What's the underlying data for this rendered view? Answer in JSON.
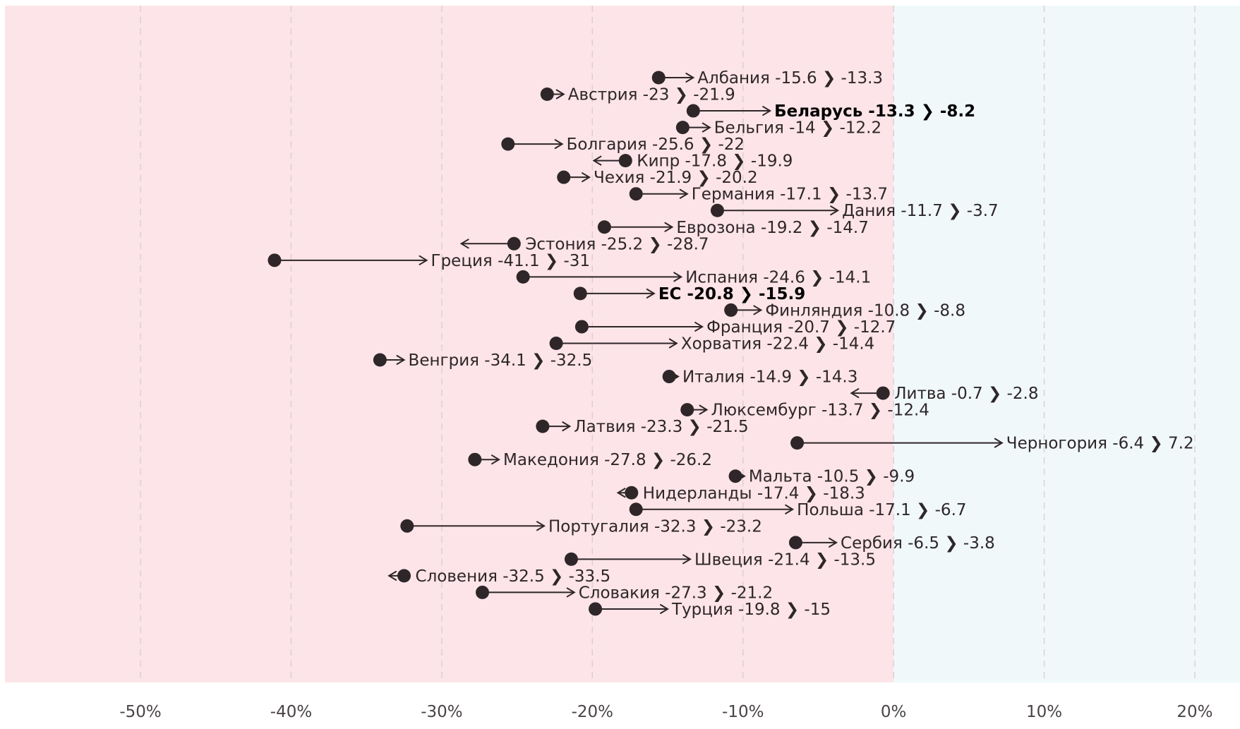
{
  "chart_data": {
    "type": "dumbbell-arrow",
    "title": "",
    "xlabel": "",
    "ylabel": "",
    "xlim": [
      -59,
      23
    ],
    "x_ticks": [
      -50,
      -40,
      -30,
      -20,
      -10,
      0,
      10,
      20
    ],
    "x_tick_labels": [
      "-50%",
      "-40%",
      "-30%",
      "-20%",
      "-10%",
      "0%",
      "10%",
      "20%"
    ],
    "grid": "vertical-dashed",
    "background_bands": [
      {
        "from": -59,
        "to": 0,
        "color": "#fce4e8"
      },
      {
        "from": 0,
        "to": 23,
        "color": "#f0f8fa"
      }
    ],
    "colors": {
      "marker": "#2e2629",
      "arrow": "#2e2629",
      "grid": "#d9cfd2",
      "label": "#2e2629"
    },
    "separator": "❯",
    "rows": [
      {
        "name": "Албания",
        "start": -15.6,
        "end": -13.3,
        "highlight": false
      },
      {
        "name": "Австрия",
        "start": -23,
        "end": -21.9,
        "highlight": false
      },
      {
        "name": "Беларусь",
        "start": -13.3,
        "end": -8.2,
        "highlight": true
      },
      {
        "name": "Бельгия",
        "start": -14,
        "end": -12.2,
        "highlight": false
      },
      {
        "name": "Болгария",
        "start": -25.6,
        "end": -22,
        "highlight": false
      },
      {
        "name": "Кипр",
        "start": -17.8,
        "end": -19.9,
        "highlight": false
      },
      {
        "name": "Чехия",
        "start": -21.9,
        "end": -20.2,
        "highlight": false
      },
      {
        "name": "Германия",
        "start": -17.1,
        "end": -13.7,
        "highlight": false
      },
      {
        "name": "Дания",
        "start": -11.7,
        "end": -3.7,
        "highlight": false
      },
      {
        "name": "Еврозона",
        "start": -19.2,
        "end": -14.7,
        "highlight": false
      },
      {
        "name": "Эстония",
        "start": -25.2,
        "end": -28.7,
        "highlight": false
      },
      {
        "name": "Греция",
        "start": -41.1,
        "end": -31,
        "highlight": false
      },
      {
        "name": "Испания",
        "start": -24.6,
        "end": -14.1,
        "highlight": false
      },
      {
        "name": "ЕС",
        "start": -20.8,
        "end": -15.9,
        "highlight": true
      },
      {
        "name": "Финляндия",
        "start": -10.8,
        "end": -8.8,
        "highlight": false
      },
      {
        "name": "Франция",
        "start": -20.7,
        "end": -12.7,
        "highlight": false
      },
      {
        "name": "Хорватия",
        "start": -22.4,
        "end": -14.4,
        "highlight": false
      },
      {
        "name": "Венгрия",
        "start": -34.1,
        "end": -32.5,
        "highlight": false
      },
      {
        "name": "Италия",
        "start": -14.9,
        "end": -14.3,
        "highlight": false
      },
      {
        "name": "Литва",
        "start": -0.7,
        "end": -2.8,
        "highlight": false
      },
      {
        "name": "Люксембург",
        "start": -13.7,
        "end": -12.4,
        "highlight": false
      },
      {
        "name": "Латвия",
        "start": -23.3,
        "end": -21.5,
        "highlight": false
      },
      {
        "name": "Черногория",
        "start": -6.4,
        "end": 7.2,
        "highlight": false
      },
      {
        "name": "Македония",
        "start": -27.8,
        "end": -26.2,
        "highlight": false
      },
      {
        "name": "Мальта",
        "start": -10.5,
        "end": -9.9,
        "highlight": false
      },
      {
        "name": "Нидерланды",
        "start": -17.4,
        "end": -18.3,
        "highlight": false
      },
      {
        "name": "Польша",
        "start": -17.1,
        "end": -6.7,
        "highlight": false
      },
      {
        "name": "Португалия",
        "start": -32.3,
        "end": -23.2,
        "highlight": false
      },
      {
        "name": "Сербия",
        "start": -6.5,
        "end": -3.8,
        "highlight": false
      },
      {
        "name": "Швеция",
        "start": -21.4,
        "end": -13.5,
        "highlight": false
      },
      {
        "name": "Словения",
        "start": -32.5,
        "end": -33.5,
        "highlight": false
      },
      {
        "name": "Словакия",
        "start": -27.3,
        "end": -21.2,
        "highlight": false
      },
      {
        "name": "Турция",
        "start": -19.8,
        "end": -15,
        "highlight": false
      }
    ]
  }
}
